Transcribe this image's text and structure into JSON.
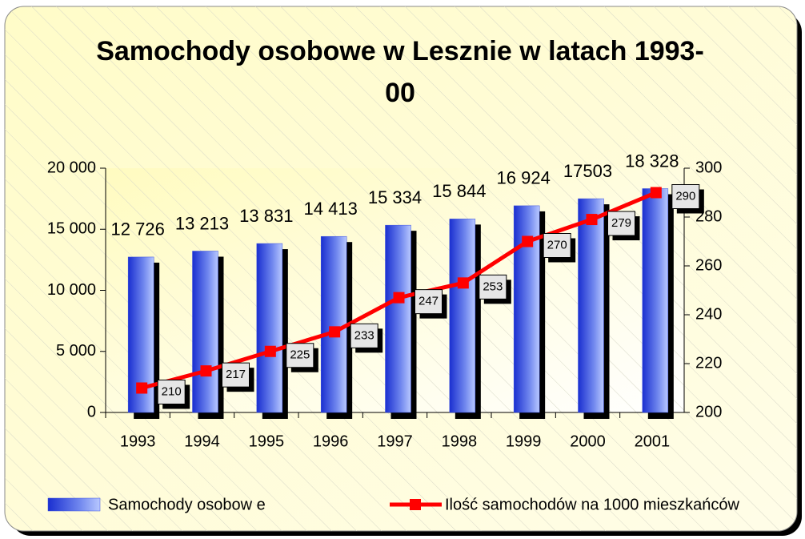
{
  "chart_data": {
    "type": "bar-line",
    "title": "Samochody osobowe w Lesznie w latach 1993-00",
    "categories": [
      "1993",
      "1994",
      "1995",
      "1996",
      "1997",
      "1998",
      "1999",
      "2000",
      "2001"
    ],
    "series": [
      {
        "name": "Samochody osobow e",
        "type": "bar",
        "color": "#3a4fe0",
        "values": [
          12726,
          13213,
          13831,
          14413,
          15334,
          15844,
          16924,
          17503,
          18328
        ],
        "value_labels": [
          "12 726",
          "13 213",
          "13 831",
          "14 413",
          "15 334",
          "15 844",
          "16 924",
          "17503",
          "18 328"
        ]
      },
      {
        "name": "Ilość samochodów  na 1000 mieszkańców",
        "type": "line",
        "axis": "y2",
        "color": "#ff0000",
        "values": [
          210,
          217,
          225,
          233,
          247,
          253,
          270,
          279,
          290
        ]
      }
    ],
    "ylim": [
      0,
      20000
    ],
    "yticks": [
      0,
      {
        "value": 5000,
        "label": "5 000"
      },
      {
        "value": 10000,
        "label": "10 000"
      },
      {
        "value": 15000,
        "label": "15 000"
      },
      {
        "value": 20000,
        "label": "20 000"
      }
    ],
    "y2lim": [
      200,
      300
    ],
    "y2ticks": [
      200,
      220,
      240,
      260,
      280,
      300
    ],
    "legend": "bottom"
  }
}
